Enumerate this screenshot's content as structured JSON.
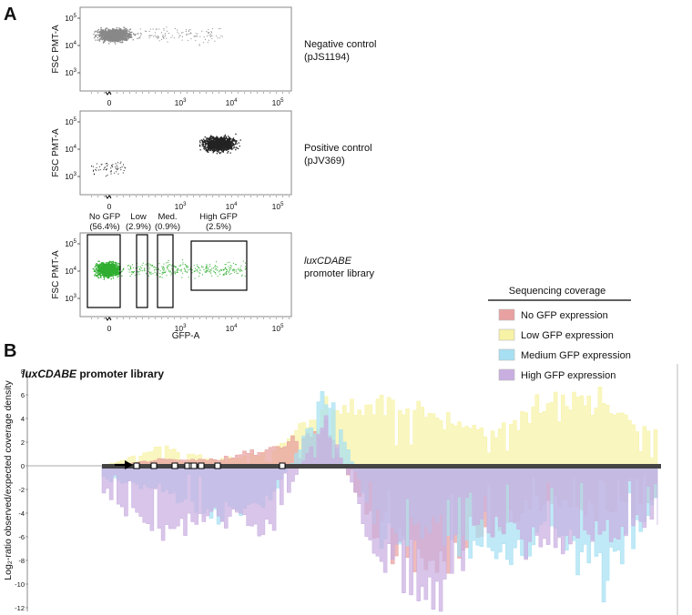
{
  "panel_a": {
    "label": "A",
    "ylabel": "FSC PMT-A",
    "xlabel": "GFP-A",
    "y_ticks": [
      "10^5",
      "10^4",
      "10^3"
    ],
    "x_ticks": [
      "0",
      "10^3",
      "10^4",
      "10^5"
    ],
    "plots": [
      {
        "name": "negative",
        "line1": "Negative control",
        "line2": "(pJS1194)",
        "color": "#888888"
      },
      {
        "name": "positive",
        "line1": "Positive control",
        "line2": "(pJV369)",
        "color": "#222222"
      },
      {
        "name": "library",
        "line1": "luxCDABE",
        "line2": "promoter library",
        "color": "#2fae2f"
      }
    ],
    "gates": [
      {
        "name": "no-gfp",
        "line1": "No GFP",
        "line2": "(56.4%)",
        "percent": 56.4
      },
      {
        "name": "low",
        "line1": "Low",
        "line2": "(2.9%)",
        "percent": 2.9
      },
      {
        "name": "med",
        "line1": "Med.",
        "line2": "(0.9%)",
        "percent": 0.9
      },
      {
        "name": "high",
        "line1": "High GFP",
        "line2": "(2.5%)",
        "percent": 2.5
      }
    ]
  },
  "legend": {
    "title": "Sequencing coverage",
    "items": [
      {
        "label": "No GFP expression",
        "color": "#e8a0a0"
      },
      {
        "label": "Low GFP expression",
        "color": "#f7f2a6"
      },
      {
        "label": "Medium GFP expression",
        "color": "#a6e0f2"
      },
      {
        "label": "High GFP expression",
        "color": "#c9aee0"
      }
    ]
  },
  "chart_data": {
    "type": "area",
    "panel_label": "B",
    "title_italic": "luxCDABE",
    "title_rest": " promoter library",
    "ylabel": "Log₂-ratio observed/expected coverage density",
    "ylim": [
      -12,
      8
    ],
    "y_ticks": [
      -12,
      -10,
      -8,
      -6,
      -4,
      -2,
      0,
      2,
      4,
      6,
      8
    ],
    "x": [
      0,
      10,
      20,
      30,
      40,
      50,
      60,
      70,
      80,
      90,
      100
    ],
    "series": [
      {
        "name": "No GFP expression",
        "color": "#e8a0a0",
        "values": [
          0,
          0.5,
          0.5,
          1.5,
          3,
          -6,
          -8.5,
          -5,
          -3,
          -4,
          -3
        ]
      },
      {
        "name": "Low GFP expression",
        "color": "#f7f2a6",
        "values": [
          0,
          1.5,
          0.5,
          1,
          5,
          5.5,
          4,
          3,
          5,
          5.5,
          2.5
        ]
      },
      {
        "name": "Medium GFP expression",
        "color": "#a6e0f2",
        "values": [
          -1,
          -2,
          -4,
          -3,
          6,
          -6,
          -5,
          -8,
          -5,
          -9,
          -3
        ]
      },
      {
        "name": "High GFP expression",
        "color": "#c9aee0",
        "values": [
          -2,
          -6,
          -4,
          -5,
          4,
          -8,
          -11,
          -5,
          -7,
          -5,
          -5
        ]
      }
    ],
    "region_markers": 9
  }
}
